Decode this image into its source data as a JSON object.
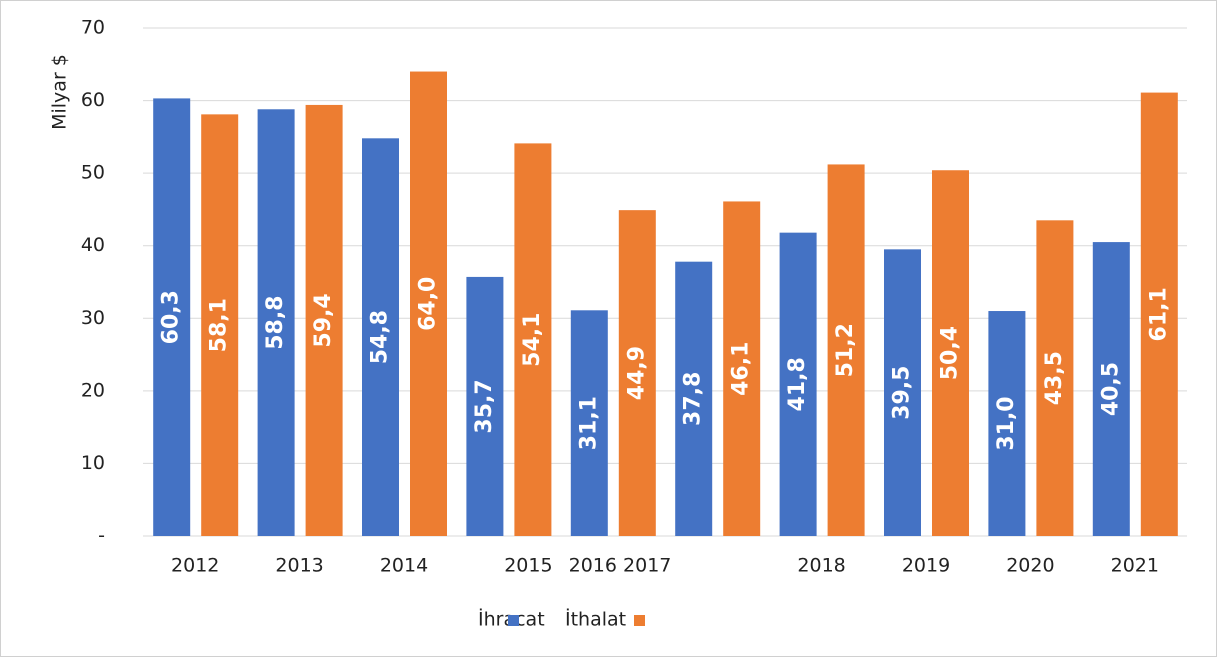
{
  "chart_data": {
    "type": "bar",
    "y_axis_label": "Milyar $",
    "categories": [
      "2012",
      "2013",
      "2014",
      "2015",
      "2016",
      "2017",
      "2018",
      "2019",
      "2020",
      "2021"
    ],
    "series": [
      {
        "name": "İhracat",
        "color": "#4472c4",
        "values": [
          60.3,
          58.8,
          54.8,
          35.7,
          31.1,
          37.8,
          41.8,
          39.5,
          31.0,
          40.5
        ],
        "value_labels": [
          "60,3",
          "58,8",
          "54,8",
          "35,7",
          "31,1",
          "37,8",
          "41,8",
          "39,5",
          "31,0",
          "40,5"
        ]
      },
      {
        "name": "İthalat",
        "color": "#ed7d31",
        "values": [
          58.1,
          59.4,
          64.0,
          54.1,
          44.9,
          46.1,
          51.2,
          50.4,
          43.5,
          61.1
        ],
        "value_labels": [
          "58,1",
          "59,4",
          "64,0",
          "54,1",
          "44,9",
          "46,1",
          "51,2",
          "50,4",
          "43,5",
          "61,1"
        ]
      }
    ],
    "ylim": [
      0,
      70
    ],
    "yticks": [
      {
        "value": 0,
        "label": "-"
      },
      10,
      20,
      30,
      40,
      50,
      60,
      70
    ],
    "grid": true,
    "legend": "bottom"
  }
}
